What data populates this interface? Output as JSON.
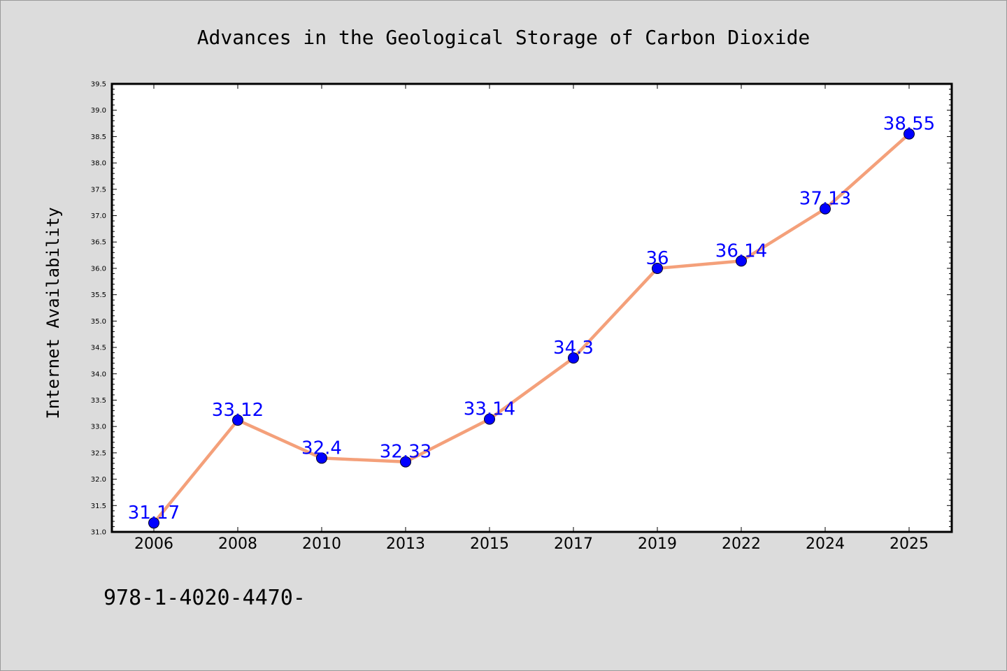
{
  "chart_data": {
    "type": "line",
    "title": "Advances in the Geological Storage of Carbon Dioxide",
    "xlabel": "",
    "ylabel": "Internet Availability",
    "categories": [
      "2006",
      "2008",
      "2010",
      "2013",
      "2015",
      "2017",
      "2019",
      "2022",
      "2024",
      "2025"
    ],
    "series": [
      {
        "values": [
          31.17,
          33.12,
          32.4,
          32.33,
          33.14,
          34.3,
          36,
          36.14,
          37.13,
          38.55
        ],
        "labels": [
          "31.17",
          "33.12",
          "32.4",
          "32.33",
          "33.14",
          "34.3",
          "36",
          "36.14",
          "37.13",
          "38.55"
        ]
      }
    ],
    "ylim": [
      31.0,
      39.5
    ],
    "yticks": [
      "31.0",
      "31.5",
      "32.0",
      "32.5",
      "33.0",
      "33.5",
      "34.0",
      "34.5",
      "35.0",
      "35.5",
      "36.0",
      "36.5",
      "37.0",
      "37.5",
      "38.0",
      "38.5",
      "39.0",
      "39.5"
    ],
    "grid": false,
    "line_color": "#f4a07a",
    "marker_color": "#0000ff",
    "label_color": "#0000ff",
    "plot_background": "#ffffff",
    "page_background": "#dcdcdc"
  },
  "footnote": "978-1-4020-4470-"
}
